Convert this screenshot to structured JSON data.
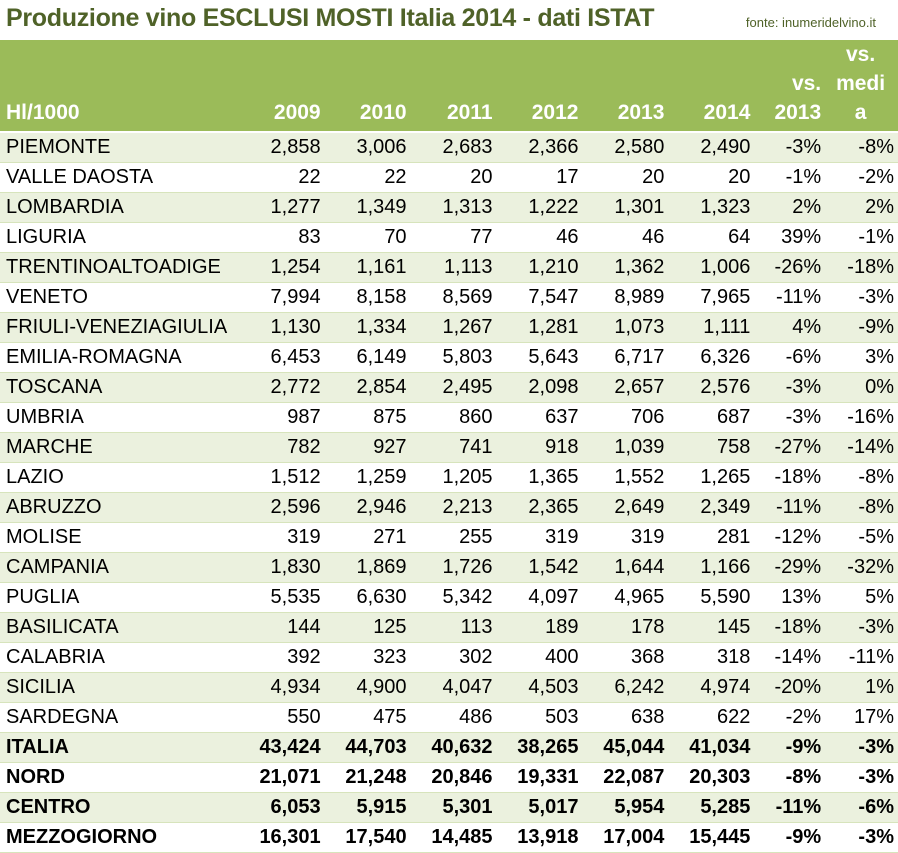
{
  "header": {
    "title": "Produzione vino ESCLUSI MOSTI Italia 2014 - dati ISTAT",
    "source": "fonte: inumeridelvino.it"
  },
  "colors": {
    "header_bg": "#9bbb59",
    "title_text": "#4f6228",
    "row_stripe": "#ebf1de",
    "row_plain": "#ffffff"
  },
  "chart_data": {
    "type": "table",
    "title": "Produzione vino ESCLUSI MOSTI Italia 2014 - dati ISTAT",
    "columns": [
      "Hl/1000",
      "2009",
      "2010",
      "2011",
      "2012",
      "2013",
      "2014",
      "vs. 2013",
      "vs. media"
    ],
    "column_lines": {
      "vs_2013": [
        "vs.",
        "2013"
      ],
      "vs_media": [
        "vs.",
        "medi",
        "a"
      ]
    },
    "rows": [
      {
        "name": "PIEMONTE",
        "values": [
          "2,858",
          "3,006",
          "2,683",
          "2,366",
          "2,580",
          "2,490"
        ],
        "vs2013": "-3%",
        "vsmedia": "-8%"
      },
      {
        "name": "VALLE DAOSTA",
        "values": [
          "22",
          "22",
          "20",
          "17",
          "20",
          "20"
        ],
        "vs2013": "-1%",
        "vsmedia": "-2%"
      },
      {
        "name": "LOMBARDIA",
        "values": [
          "1,277",
          "1,349",
          "1,313",
          "1,222",
          "1,301",
          "1,323"
        ],
        "vs2013": "2%",
        "vsmedia": "2%"
      },
      {
        "name": "LIGURIA",
        "values": [
          "83",
          "70",
          "77",
          "46",
          "46",
          "64"
        ],
        "vs2013": "39%",
        "vsmedia": "-1%"
      },
      {
        "name": "TRENTINOALTOADIGE",
        "values": [
          "1,254",
          "1,161",
          "1,113",
          "1,210",
          "1,362",
          "1,006"
        ],
        "vs2013": "-26%",
        "vsmedia": "-18%"
      },
      {
        "name": "VENETO",
        "values": [
          "7,994",
          "8,158",
          "8,569",
          "7,547",
          "8,989",
          "7,965"
        ],
        "vs2013": "-11%",
        "vsmedia": "-3%"
      },
      {
        "name": "FRIULI-VENEZIAGIULIA",
        "values": [
          "1,130",
          "1,334",
          "1,267",
          "1,281",
          "1,073",
          "1,111"
        ],
        "vs2013": "4%",
        "vsmedia": "-9%"
      },
      {
        "name": "EMILIA-ROMAGNA",
        "values": [
          "6,453",
          "6,149",
          "5,803",
          "5,643",
          "6,717",
          "6,326"
        ],
        "vs2013": "-6%",
        "vsmedia": "3%"
      },
      {
        "name": "TOSCANA",
        "values": [
          "2,772",
          "2,854",
          "2,495",
          "2,098",
          "2,657",
          "2,576"
        ],
        "vs2013": "-3%",
        "vsmedia": "0%"
      },
      {
        "name": "UMBRIA",
        "values": [
          "987",
          "875",
          "860",
          "637",
          "706",
          "687"
        ],
        "vs2013": "-3%",
        "vsmedia": "-16%"
      },
      {
        "name": "MARCHE",
        "values": [
          "782",
          "927",
          "741",
          "918",
          "1,039",
          "758"
        ],
        "vs2013": "-27%",
        "vsmedia": "-14%"
      },
      {
        "name": "LAZIO",
        "values": [
          "1,512",
          "1,259",
          "1,205",
          "1,365",
          "1,552",
          "1,265"
        ],
        "vs2013": "-18%",
        "vsmedia": "-8%"
      },
      {
        "name": "ABRUZZO",
        "values": [
          "2,596",
          "2,946",
          "2,213",
          "2,365",
          "2,649",
          "2,349"
        ],
        "vs2013": "-11%",
        "vsmedia": "-8%"
      },
      {
        "name": "MOLISE",
        "values": [
          "319",
          "271",
          "255",
          "319",
          "319",
          "281"
        ],
        "vs2013": "-12%",
        "vsmedia": "-5%"
      },
      {
        "name": "CAMPANIA",
        "values": [
          "1,830",
          "1,869",
          "1,726",
          "1,542",
          "1,644",
          "1,166"
        ],
        "vs2013": "-29%",
        "vsmedia": "-32%"
      },
      {
        "name": "PUGLIA",
        "values": [
          "5,535",
          "6,630",
          "5,342",
          "4,097",
          "4,965",
          "5,590"
        ],
        "vs2013": "13%",
        "vsmedia": "5%"
      },
      {
        "name": "BASILICATA",
        "values": [
          "144",
          "125",
          "113",
          "189",
          "178",
          "145"
        ],
        "vs2013": "-18%",
        "vsmedia": "-3%"
      },
      {
        "name": "CALABRIA",
        "values": [
          "392",
          "323",
          "302",
          "400",
          "368",
          "318"
        ],
        "vs2013": "-14%",
        "vsmedia": "-11%"
      },
      {
        "name": "SICILIA",
        "values": [
          "4,934",
          "4,900",
          "4,047",
          "4,503",
          "6,242",
          "4,974"
        ],
        "vs2013": "-20%",
        "vsmedia": "1%"
      },
      {
        "name": "SARDEGNA",
        "values": [
          "550",
          "475",
          "486",
          "503",
          "638",
          "622"
        ],
        "vs2013": "-2%",
        "vsmedia": "17%"
      },
      {
        "name": "ITALIA",
        "values": [
          "43,424",
          "44,703",
          "40,632",
          "38,265",
          "45,044",
          "41,034"
        ],
        "vs2013": "-9%",
        "vsmedia": "-3%",
        "bold": true
      },
      {
        "name": "NORD",
        "values": [
          "21,071",
          "21,248",
          "20,846",
          "19,331",
          "22,087",
          "20,303"
        ],
        "vs2013": "-8%",
        "vsmedia": "-3%",
        "bold": true
      },
      {
        "name": "CENTRO",
        "values": [
          "6,053",
          "5,915",
          "5,301",
          "5,017",
          "5,954",
          "5,285"
        ],
        "vs2013": "-11%",
        "vsmedia": "-6%",
        "bold": true
      },
      {
        "name": "MEZZOGIORNO",
        "values": [
          "16,301",
          "17,540",
          "14,485",
          "13,918",
          "17,004",
          "15,445"
        ],
        "vs2013": "-9%",
        "vsmedia": "-3%",
        "bold": true
      }
    ]
  }
}
